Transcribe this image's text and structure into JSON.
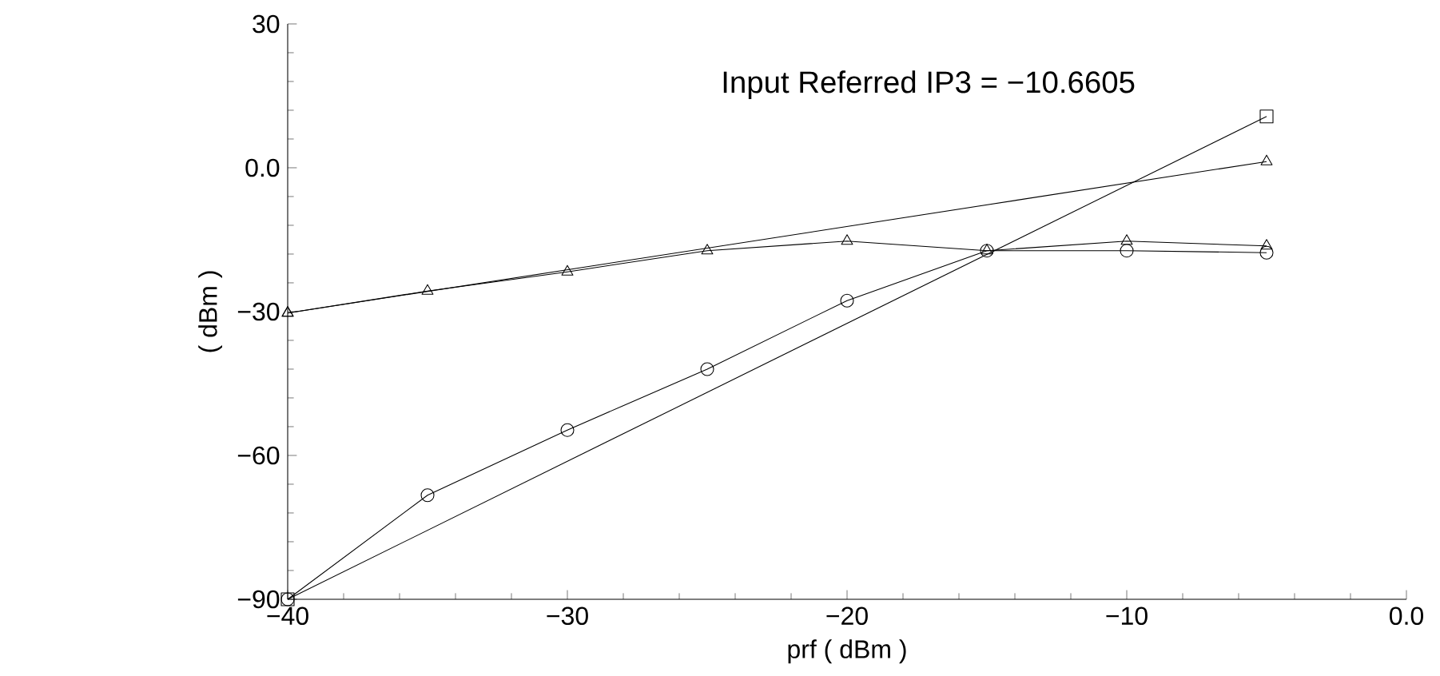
{
  "chart_data": {
    "type": "line",
    "xlabel": "prf ( dBm )",
    "ylabel": "( dBm )",
    "xlim": [
      -40,
      0
    ],
    "ylim": [
      -90,
      30
    ],
    "xticks": [
      {
        "value": -40,
        "label": "−40"
      },
      {
        "value": -30,
        "label": "−30"
      },
      {
        "value": -20,
        "label": "−20"
      },
      {
        "value": -10,
        "label": "−10"
      },
      {
        "value": 0,
        "label": "0.0"
      }
    ],
    "yticks": [
      {
        "value": -90,
        "label": "−90"
      },
      {
        "value": -60,
        "label": "−60"
      },
      {
        "value": -30,
        "label": "−30"
      },
      {
        "value": 0,
        "label": "0.0"
      },
      {
        "value": 30,
        "label": "30"
      }
    ],
    "grid": false,
    "legend": false,
    "series": [
      {
        "color": "#000000",
        "marker": "triangle",
        "x": [
          -40,
          -35,
          -30,
          -25,
          -20,
          -15,
          -10,
          -5
        ],
        "values": [
          -30.3,
          -25.7,
          -21.7,
          -17.3,
          -15.3,
          -17.3,
          -15.3,
          -16.3
        ]
      },
      {
        "color": "#000000",
        "marker": "triangle",
        "x": [
          -40,
          -5
        ],
        "values": [
          -30.3,
          1.3
        ]
      },
      {
        "color": "#000000",
        "marker": "circle",
        "x": [
          -40,
          -35,
          -30,
          -25,
          -20,
          -15,
          -10,
          -5
        ],
        "values": [
          -90,
          -68.3,
          -54.7,
          -42,
          -27.7,
          -17.3,
          -17.3,
          -17.7
        ]
      },
      {
        "color": "#000000",
        "marker": "square",
        "x": [
          -40,
          -5
        ],
        "values": [
          -90,
          10.7
        ]
      }
    ],
    "annotations": [
      {
        "text": "Input Referred IP3 = −10.6605",
        "x": -10.6605,
        "y": -4
      }
    ]
  }
}
